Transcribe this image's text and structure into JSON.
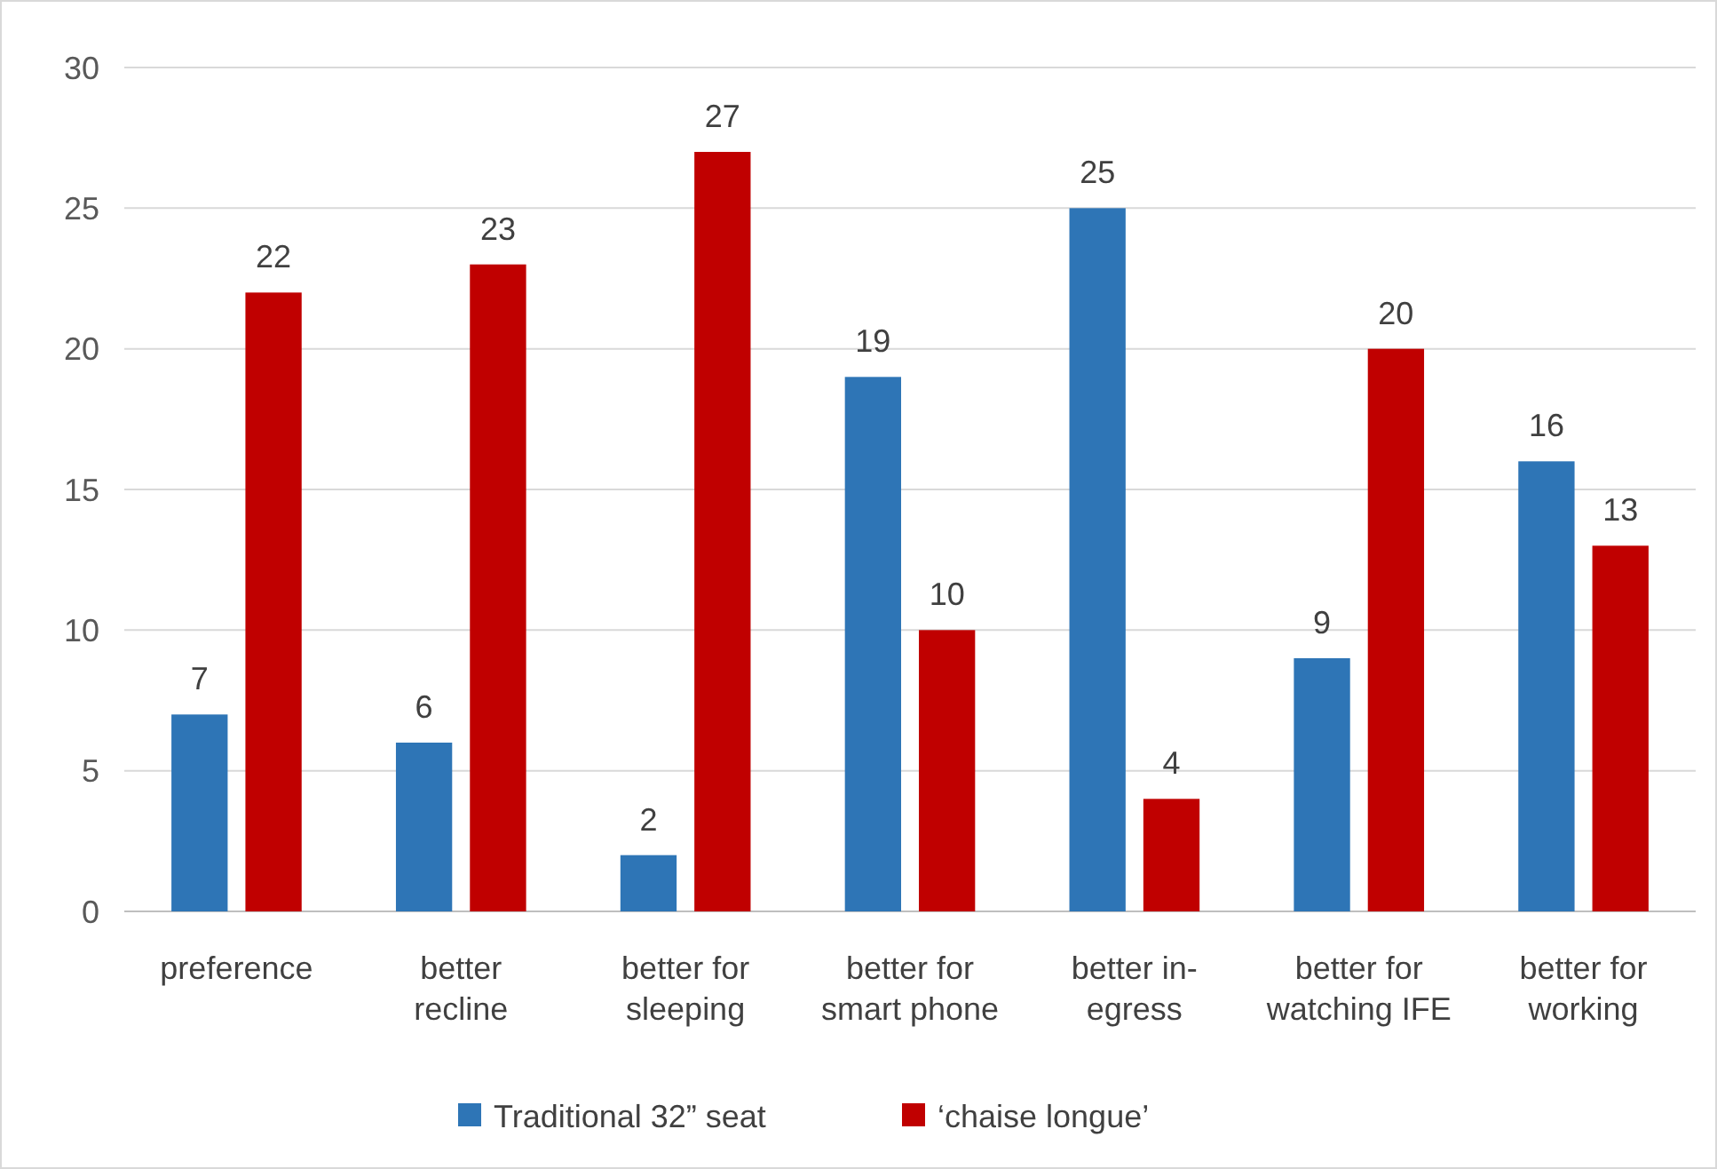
{
  "chart_data": {
    "type": "bar",
    "categories": [
      "preference",
      "better recline",
      "better for sleeping",
      "better for smart phone",
      "better in-egress",
      "better for watching IFE",
      "better for working"
    ],
    "series": [
      {
        "name": "Traditional 32” seat",
        "color": "#2e75b6",
        "values": [
          7,
          6,
          2,
          19,
          25,
          9,
          16
        ]
      },
      {
        "name": "‘chaise longue’",
        "color": "#c00000",
        "values": [
          22,
          23,
          27,
          10,
          4,
          20,
          13
        ]
      }
    ],
    "ylim": [
      0,
      30
    ],
    "yticks": [
      0,
      5,
      10,
      15,
      20,
      25,
      30
    ],
    "grid": "y",
    "legend": "bottom",
    "data_labels": true
  }
}
